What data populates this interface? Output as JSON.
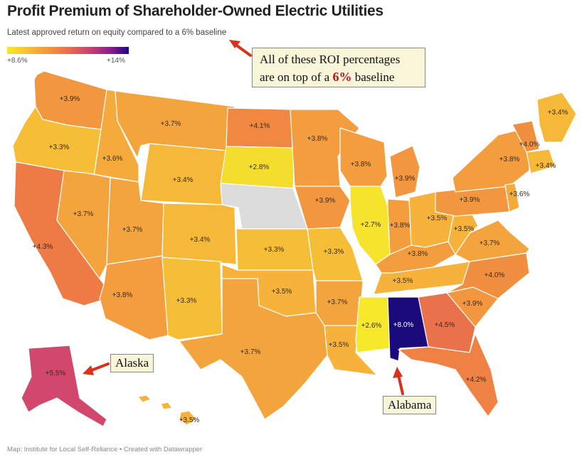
{
  "title": "Profit Premium of Shareholder-Owned Electric Utilities",
  "subtitle": "Latest approved return on equity compared to a 6% baseline",
  "legend": {
    "min_label": "+8.6%",
    "max_label": "+14%",
    "colors": [
      "#f5e92a",
      "#f6b23a",
      "#ee7a45",
      "#d2486d",
      "#8a1c8f",
      "#1a0a7c"
    ]
  },
  "map_data": {
    "no_data_color": "#dcdcdc",
    "states": [
      {
        "state": "WA",
        "label": "+3.9%",
        "value": 3.9
      },
      {
        "state": "OR",
        "label": "+3.3%",
        "value": 3.3
      },
      {
        "state": "CA",
        "label": "+4.3%",
        "value": 4.3
      },
      {
        "state": "ID",
        "label": "+3.6%",
        "value": 3.6
      },
      {
        "state": "NV",
        "label": "+3.7%",
        "value": 3.7
      },
      {
        "state": "MT",
        "label": "+3.7%",
        "value": 3.7
      },
      {
        "state": "WY",
        "label": "+3.4%",
        "value": 3.4
      },
      {
        "state": "UT",
        "label": "+3.7%",
        "value": 3.7
      },
      {
        "state": "AZ",
        "label": "+3.8%",
        "value": 3.8
      },
      {
        "state": "CO",
        "label": "+3.4%",
        "value": 3.4
      },
      {
        "state": "NM",
        "label": "+3.3%",
        "value": 3.3
      },
      {
        "state": "ND",
        "label": "+4.1%",
        "value": 4.1
      },
      {
        "state": "SD",
        "label": "+2.8%",
        "value": 2.8
      },
      {
        "state": "NE",
        "label": "",
        "value": null
      },
      {
        "state": "KS",
        "label": "+3.3%",
        "value": 3.3
      },
      {
        "state": "OK",
        "label": "+3.5%",
        "value": 3.5
      },
      {
        "state": "TX",
        "label": "+3.7%",
        "value": 3.7
      },
      {
        "state": "MN",
        "label": "+3.8%",
        "value": 3.8
      },
      {
        "state": "IA",
        "label": "+3.9%",
        "value": 3.9
      },
      {
        "state": "MO",
        "label": "+3.3%",
        "value": 3.3
      },
      {
        "state": "AR",
        "label": "+3.7%",
        "value": 3.7
      },
      {
        "state": "LA",
        "label": "+3.5%",
        "value": 3.5
      },
      {
        "state": "WI",
        "label": "+3.8%",
        "value": 3.8
      },
      {
        "state": "IL",
        "label": "+2.7%",
        "value": 2.7
      },
      {
        "state": "MI",
        "label": "+3.9%",
        "value": 3.9
      },
      {
        "state": "IN",
        "label": "+3.8%",
        "value": 3.8
      },
      {
        "state": "OH",
        "label": "+3.5%",
        "value": 3.5
      },
      {
        "state": "KY",
        "label": "+3.8%",
        "value": 3.8
      },
      {
        "state": "TN",
        "label": "+3.5%",
        "value": 3.5
      },
      {
        "state": "MS",
        "label": "+2.6%",
        "value": 2.6
      },
      {
        "state": "AL",
        "label": "+8.0%",
        "value": 8.0
      },
      {
        "state": "GA",
        "label": "+4.5%",
        "value": 4.5
      },
      {
        "state": "FL",
        "label": "+4.2%",
        "value": 4.2
      },
      {
        "state": "SC",
        "label": "+3.9%",
        "value": 3.9
      },
      {
        "state": "NC",
        "label": "+4.0%",
        "value": 4.0
      },
      {
        "state": "VA",
        "label": "+3.7%",
        "value": 3.7
      },
      {
        "state": "WV",
        "label": "+3.5%",
        "value": 3.5
      },
      {
        "state": "PA",
        "label": "+3.9%",
        "value": 3.9
      },
      {
        "state": "NY",
        "label": "+3.8%",
        "value": 3.8
      },
      {
        "state": "NJ",
        "label": "+3.6%",
        "value": 3.6
      },
      {
        "state": "VT",
        "label": "+4.0%",
        "value": 4.0
      },
      {
        "state": "MA",
        "label": "+3.4%",
        "value": 3.4
      },
      {
        "state": "ME",
        "label": "+3.4%",
        "value": 3.4
      },
      {
        "state": "AK",
        "label": "+5.5%",
        "value": 5.5
      },
      {
        "state": "HI",
        "label": "+3.5%",
        "value": 3.5
      }
    ]
  },
  "annotations": {
    "baseline_line1": "All of these ROI percentages",
    "baseline_line2_prefix": "are on top of a ",
    "baseline_pct": "6%",
    "baseline_line2_suffix": "baseline",
    "alaska": "Alaska",
    "alabama": "Alabama"
  },
  "credit": "Map: Institute for Local Self-Reliance • Created with Datawrapper"
}
